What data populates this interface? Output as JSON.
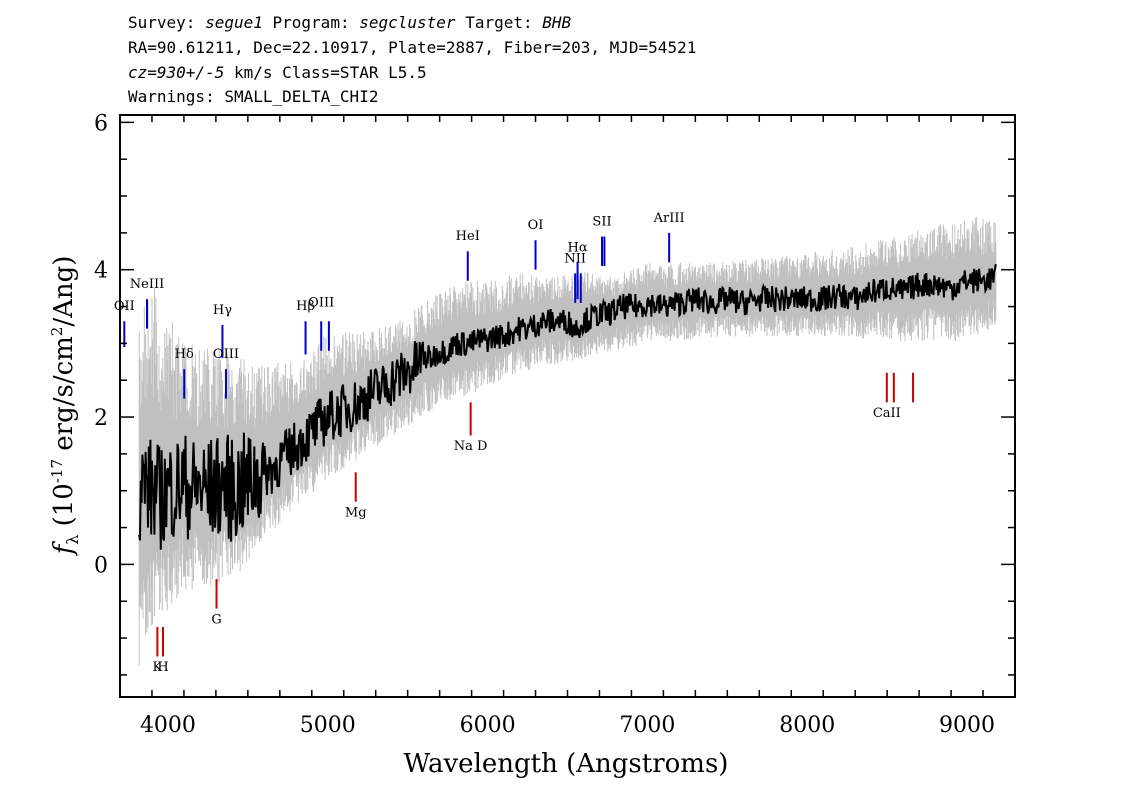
{
  "header": {
    "line1": {
      "survey_label": "Survey:",
      "survey": "segue1",
      "program_label": "Program:",
      "program": "segcluster",
      "target_label": "Target:",
      "target": "BHB"
    },
    "line2": "RA=90.61211, Dec=22.10917, Plate=2887, Fiber=203, MJD=54521",
    "line3": {
      "cz": "cz=930+/-5",
      "rest": "km/s Class=STAR L5.5"
    },
    "line4": "Warnings: SMALL_DELTA_CHI2"
  },
  "chart_data": {
    "type": "line",
    "xlabel": "Wavelength (Angstroms)",
    "ylabel": "f_λ (10^-17 erg/s/cm^2/Ang)",
    "xlim": [
      3700,
      9300
    ],
    "ylim": [
      -1.8,
      6.1
    ],
    "xticks": [
      4000,
      5000,
      6000,
      7000,
      8000,
      9000
    ],
    "yticks": [
      0,
      2,
      4,
      6
    ],
    "grid": false,
    "series": [
      {
        "role": "flux",
        "color": "#000000",
        "x": [
          3820,
          3850,
          3900,
          3950,
          4000,
          4050,
          4100,
          4150,
          4200,
          4250,
          4300,
          4350,
          4400,
          4450,
          4500,
          4550,
          4600,
          4650,
          4700,
          4750,
          4800,
          4850,
          4900,
          4950,
          5000,
          5050,
          5100,
          5150,
          5200,
          5250,
          5300,
          5350,
          5400,
          5450,
          5500,
          5550,
          5600,
          5650,
          5700,
          5750,
          5800,
          5850,
          5900,
          5950,
          6000,
          6050,
          6100,
          6150,
          6200,
          6250,
          6300,
          6350,
          6400,
          6450,
          6500,
          6550,
          6600,
          6650,
          6700,
          6750,
          6800,
          6850,
          6900,
          6950,
          7000,
          7100,
          7200,
          7300,
          7400,
          7500,
          7600,
          7700,
          7800,
          7900,
          8000,
          8100,
          8200,
          8300,
          8400,
          8500,
          8600,
          8700,
          8800,
          8900,
          9000,
          9100,
          9180
        ],
        "y": [
          1.0,
          1.1,
          1.0,
          0.9,
          1.0,
          1.05,
          1.1,
          1.0,
          1.05,
          1.0,
          1.05,
          1.1,
          1.0,
          1.05,
          1.1,
          1.2,
          1.25,
          1.3,
          1.4,
          1.5,
          1.6,
          1.7,
          1.8,
          1.9,
          2.0,
          2.05,
          2.1,
          2.15,
          2.2,
          2.3,
          2.35,
          2.4,
          2.5,
          2.55,
          2.6,
          2.7,
          2.8,
          2.8,
          2.9,
          2.9,
          3.0,
          3.0,
          3.0,
          3.05,
          3.05,
          3.1,
          3.1,
          3.15,
          3.2,
          3.2,
          3.25,
          3.3,
          3.3,
          3.3,
          3.3,
          3.2,
          3.3,
          3.35,
          3.4,
          3.4,
          3.45,
          3.5,
          3.5,
          3.5,
          3.55,
          3.5,
          3.55,
          3.6,
          3.55,
          3.6,
          3.55,
          3.6,
          3.6,
          3.6,
          3.6,
          3.6,
          3.65,
          3.6,
          3.7,
          3.75,
          3.7,
          3.8,
          3.8,
          3.75,
          3.85,
          3.85,
          3.9
        ]
      },
      {
        "role": "noise-band",
        "color": "#c0c0c0",
        "x": [
          3820,
          3900,
          4000,
          4100,
          4200,
          4300,
          4400,
          4500,
          4600,
          4700,
          4800,
          4900,
          5000,
          5200,
          5400,
          5600,
          5800,
          6000,
          6200,
          6400,
          6600,
          6800,
          7000,
          7400,
          7800,
          8200,
          8600,
          9000,
          9180
        ],
        "y_low": [
          -1.8,
          -1.3,
          -0.9,
          -0.6,
          -0.6,
          -0.5,
          -0.4,
          -0.2,
          0.2,
          0.4,
          0.6,
          0.8,
          1.0,
          1.3,
          1.6,
          1.9,
          2.1,
          2.3,
          2.5,
          2.6,
          2.7,
          2.8,
          2.9,
          3.0,
          3.0,
          3.0,
          2.9,
          2.9,
          3.1
        ],
        "y_high": [
          3.8,
          4.6,
          3.8,
          3.4,
          3.3,
          3.3,
          3.2,
          3.1,
          3.0,
          3.0,
          3.0,
          3.1,
          3.4,
          3.3,
          3.4,
          3.7,
          4.0,
          4.0,
          4.1,
          4.0,
          4.1,
          4.0,
          4.2,
          4.2,
          4.3,
          4.4,
          4.6,
          4.9,
          4.8
        ]
      }
    ],
    "emission_lines": [
      {
        "label": "OII",
        "x": 3727,
        "y": [
          2.95,
          3.3
        ],
        "label_y": 3.45
      },
      {
        "label": "NeIII",
        "x": 3869,
        "y": [
          3.2,
          3.6
        ],
        "label_y": 3.75
      },
      {
        "label": "Hδ",
        "x": 4102,
        "y": [
          2.25,
          2.65
        ],
        "label_y": 2.8
      },
      {
        "label": "Hγ",
        "x": 4341,
        "y": [
          2.8,
          3.25
        ],
        "label_y": 3.4
      },
      {
        "label": "OIII",
        "x": 4363,
        "y": [
          2.25,
          2.65
        ],
        "label_y": 2.8
      },
      {
        "label": "Hβ",
        "x": 4861,
        "y": [
          2.85,
          3.3
        ],
        "label_y": 3.45
      },
      {
        "label": "OIII",
        "x": 4959,
        "y": [
          2.9,
          3.3
        ],
        "label_y": 3.5
      },
      {
        "label": "OIII",
        "x": 5007,
        "y": [
          2.9,
          3.3
        ],
        "label_y": 3.5
      },
      {
        "label": "HeI",
        "x": 5876,
        "y": [
          3.85,
          4.25
        ],
        "label_y": 4.4
      },
      {
        "label": "OI",
        "x": 6300,
        "y": [
          4.0,
          4.4
        ],
        "label_y": 4.55
      },
      {
        "label": "NII",
        "x": 6548,
        "y": [
          3.55,
          3.95
        ],
        "label_y": 4.1
      },
      {
        "label": "Hα",
        "x": 6563,
        "y": [
          3.6,
          4.1
        ],
        "label_y": 4.25
      },
      {
        "label": "NII",
        "x": 6583,
        "y": [
          3.55,
          3.95
        ],
        "label_y": 4.1
      },
      {
        "label": "SII",
        "x": 6716,
        "y": [
          4.05,
          4.45
        ],
        "label_y": 4.6
      },
      {
        "label": "SII",
        "x": 6731,
        "y": [
          4.05,
          4.45
        ],
        "label_y": 4.6
      },
      {
        "label": "ArIII",
        "x": 7136,
        "y": [
          4.1,
          4.5
        ],
        "label_y": 4.65
      }
    ],
    "absorption_lines": [
      {
        "label": "K",
        "x": 3934,
        "y": [
          -1.25,
          -0.85
        ],
        "label_y": -1.45
      },
      {
        "label": "H",
        "x": 3969,
        "y": [
          -1.25,
          -0.85
        ],
        "label_y": -1.45
      },
      {
        "label": "G",
        "x": 4304,
        "y": [
          -0.6,
          -0.2
        ],
        "label_y": -0.8
      },
      {
        "label": "Mg",
        "x": 5175,
        "y": [
          0.85,
          1.25
        ],
        "label_y": 0.65
      },
      {
        "label": "Na D",
        "x": 5894,
        "y": [
          1.75,
          2.2
        ],
        "label_y": 1.55
      },
      {
        "label": "CaII",
        "x": 8498,
        "y": [
          2.2,
          2.6
        ],
        "label_y": 2.0
      },
      {
        "label": "CaII",
        "x": 8542,
        "y": [
          2.2,
          2.6
        ],
        "label_y": 2.0
      },
      {
        "label": "CaII",
        "x": 8662,
        "y": [
          2.2,
          2.6
        ],
        "label_y": 2.0
      }
    ],
    "line_colors": {
      "emission": "#0000cc",
      "absorption": "#cc0000"
    }
  }
}
